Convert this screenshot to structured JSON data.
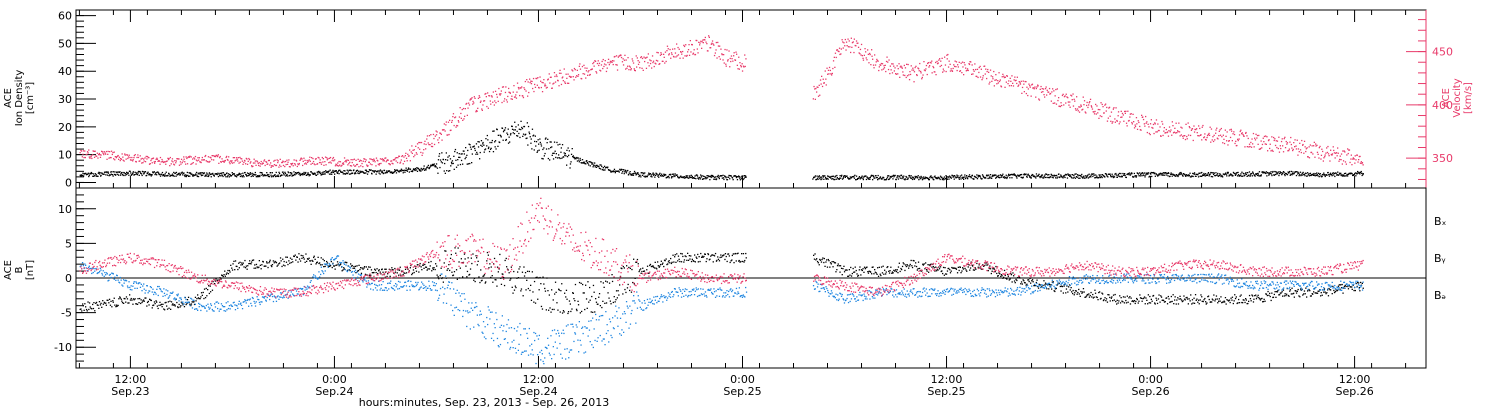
{
  "colors": {
    "black": "#000000",
    "red": "#e83a6a",
    "blue": "#1f86e0"
  },
  "x_axis": {
    "times": [
      "12:00",
      "0:00",
      "12:00",
      "0:00",
      "12:00",
      "0:00",
      "12:00"
    ],
    "dates": [
      "Sep.23",
      "Sep.24",
      "Sep.24",
      "Sep.25",
      "Sep.25",
      "Sep.26",
      "Sep.26"
    ],
    "tick_hours": [
      12,
      24,
      36,
      48,
      60,
      72,
      84
    ],
    "range_hours": [
      8.8,
      88.2
    ],
    "label": "hours:minutes, Sep. 23, 2013 - Sep. 26, 2013"
  },
  "chart_data": [
    {
      "type": "scatter",
      "panel": "top",
      "ylabel_left": [
        "ACE",
        "Ion Density",
        "[cm⁻³]"
      ],
      "ylabel_right": [
        "ACE",
        "Velocity",
        "[km/s]"
      ],
      "ylim_left": [
        -2,
        62
      ],
      "yticks_left": [
        "0",
        "10",
        "20",
        "30",
        "40",
        "50",
        "60"
      ],
      "ylim_right": [
        322,
        489
      ],
      "yticks_right": [
        "350",
        "400",
        "450"
      ],
      "data_gap_hours": [
        48.2,
        52.1
      ],
      "series": [
        {
          "name": "Ion Density",
          "color": "#000000",
          "axis": "left",
          "x": [
            9.0,
            12,
            16,
            20,
            23,
            24,
            27,
            29,
            31,
            33,
            34,
            35,
            36,
            38,
            40,
            42,
            44,
            46,
            48,
            52,
            56,
            60,
            64,
            68,
            72,
            76,
            80,
            82,
            84.5
          ],
          "y": [
            3,
            3.5,
            3,
            3,
            3.5,
            4,
            4,
            5,
            8,
            14,
            17,
            20,
            13,
            9,
            5,
            3,
            2.5,
            2,
            2,
            2,
            2,
            2,
            2.5,
            2.5,
            3,
            3,
            3.5,
            3,
            3.5
          ]
        },
        {
          "name": "Velocity",
          "color": "#e83a6a",
          "axis": "right",
          "x": [
            9.0,
            11,
            14,
            17,
            20,
            23,
            26,
            28,
            30,
            32,
            34,
            36,
            38,
            40,
            42,
            44,
            46,
            47,
            48,
            52.2,
            53,
            54,
            55,
            56,
            58,
            60,
            62,
            64,
            66,
            68,
            70,
            72,
            74,
            76,
            78,
            80,
            82,
            84,
            84.5
          ],
          "y": [
            355,
            353,
            347,
            350,
            345,
            348,
            346,
            350,
            370,
            400,
            410,
            420,
            430,
            440,
            440,
            450,
            458,
            445,
            440,
            410,
            430,
            460,
            450,
            440,
            430,
            440,
            430,
            420,
            410,
            400,
            390,
            380,
            376,
            372,
            367,
            363,
            356,
            350,
            348
          ]
        }
      ]
    },
    {
      "type": "scatter",
      "panel": "bottom",
      "ylabel_left": [
        "ACE",
        "B",
        "[nT]"
      ],
      "ylim": [
        -13,
        13
      ],
      "yticks": [
        "-10",
        "-5",
        "0",
        "5",
        "10"
      ],
      "zero_line": true,
      "data_gap_hours": [
        48.2,
        52.1
      ],
      "legend": [
        "Bₓ",
        "Bᵧ",
        "Bₔ"
      ],
      "series": [
        {
          "name": "Bx",
          "color": "#000000",
          "x": [
            9.0,
            10,
            12,
            14,
            16,
            18,
            20,
            22,
            24,
            26,
            28,
            30,
            32,
            34,
            36,
            38,
            40,
            42,
            44,
            46,
            48,
            52.2,
            54,
            56,
            58,
            60,
            62,
            64,
            66,
            68,
            70,
            72,
            74,
            76,
            78,
            80,
            82,
            84.5
          ],
          "y": [
            -4,
            -4,
            -3,
            -4,
            -3,
            2,
            2,
            3,
            2,
            1,
            1,
            2,
            2,
            1,
            -2,
            -3,
            -2,
            1,
            3,
            3,
            3,
            3,
            1,
            1,
            2,
            1,
            2,
            0,
            -1,
            -2,
            -3,
            -3,
            -3,
            -3,
            -3,
            -2,
            -2,
            -1
          ]
        },
        {
          "name": "By",
          "color": "#1f86e0",
          "x": [
            9.0,
            10,
            12,
            14,
            16,
            18,
            20,
            22,
            24,
            26,
            28,
            30,
            32,
            34,
            36,
            38,
            40,
            42,
            44,
            46,
            48,
            52.2,
            54,
            56,
            58,
            60,
            62,
            64,
            66,
            68,
            70,
            72,
            74,
            76,
            78,
            80,
            82,
            84.5
          ],
          "y": [
            2,
            1,
            -1,
            -2,
            -4,
            -4,
            -3,
            -2,
            3,
            -1,
            -1,
            -1,
            -5,
            -8,
            -10,
            -9,
            -7,
            -4,
            -2,
            -2,
            -2,
            -1,
            -3,
            -2,
            -2,
            -2,
            -2,
            -2,
            -1,
            0,
            0,
            0,
            0,
            0,
            -1,
            -1,
            -1,
            -1
          ]
        },
        {
          "name": "Bz",
          "color": "#e83a6a",
          "x": [
            9.0,
            10,
            12,
            14,
            16,
            18,
            20,
            22,
            24,
            26,
            28,
            30,
            32,
            34,
            36,
            38,
            40,
            42,
            44,
            46,
            48,
            52.2,
            54,
            56,
            58,
            60,
            62,
            64,
            66,
            68,
            70,
            72,
            74,
            76,
            78,
            80,
            82,
            84.5
          ],
          "y": [
            1,
            2,
            3,
            2,
            0,
            -1,
            -2,
            -2,
            -1,
            0,
            1,
            4,
            4,
            2,
            10,
            5,
            3,
            0,
            1,
            0,
            0,
            0,
            -1,
            -2,
            0,
            3,
            2,
            1,
            1,
            2,
            1,
            1,
            2,
            2,
            1,
            1,
            1,
            2
          ]
        }
      ]
    }
  ]
}
